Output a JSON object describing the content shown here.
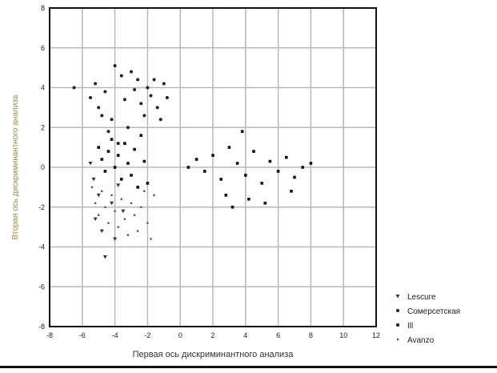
{
  "chart_data": {
    "type": "scatter",
    "title": "",
    "xlabel": "Первая ось дискриминантного анализа",
    "ylabel": "Вторая ось дискриминантного анализа",
    "xlim": [
      -8,
      12
    ],
    "ylim": [
      -8,
      8
    ],
    "x_ticks": [
      -8,
      -6,
      -4,
      -2,
      0,
      2,
      4,
      6,
      8,
      10,
      12
    ],
    "y_ticks": [
      -8,
      -6,
      -4,
      -2,
      0,
      2,
      4,
      6,
      8
    ],
    "grid": true,
    "legend_position": "bottom-right, outside plot",
    "series": [
      {
        "name": "Lescure",
        "marker": "v",
        "color": "#333333",
        "values": [
          [
            -5.5,
            0.2
          ],
          [
            -5.3,
            -0.6
          ],
          [
            -5.0,
            -1.4
          ],
          [
            -5.2,
            -2.6
          ],
          [
            -4.8,
            -3.2
          ],
          [
            -4.6,
            -4.5
          ],
          [
            -4.2,
            -1.8
          ],
          [
            -4.0,
            -3.6
          ],
          [
            -3.8,
            -0.9
          ],
          [
            -3.5,
            -2.2
          ]
        ]
      },
      {
        "name": "Сомерсетская",
        "marker": "o",
        "color": "#222222",
        "values": [
          [
            -6.5,
            4.0
          ],
          [
            -5.5,
            3.5
          ],
          [
            -5.2,
            4.2
          ],
          [
            -5.0,
            3.0
          ],
          [
            -4.8,
            2.6
          ],
          [
            -4.6,
            3.8
          ],
          [
            -4.4,
            1.8
          ],
          [
            -4.2,
            2.4
          ],
          [
            -4.0,
            5.1
          ],
          [
            -3.8,
            1.2
          ],
          [
            -3.6,
            4.6
          ],
          [
            -3.4,
            3.4
          ],
          [
            -3.2,
            2.0
          ],
          [
            -3.0,
            4.8
          ],
          [
            -2.8,
            3.9
          ],
          [
            -2.6,
            4.4
          ],
          [
            -2.4,
            3.2
          ],
          [
            -2.2,
            2.6
          ],
          [
            -2.0,
            4.0
          ],
          [
            -1.8,
            3.6
          ],
          [
            -1.6,
            4.4
          ],
          [
            -1.4,
            3.0
          ],
          [
            -1.2,
            2.4
          ],
          [
            -1.0,
            4.2
          ],
          [
            -0.8,
            3.5
          ]
        ]
      },
      {
        "name": "Ill",
        "marker": "s",
        "color": "#111111",
        "values": [
          [
            -5.0,
            1.0
          ],
          [
            -4.8,
            0.4
          ],
          [
            -4.6,
            -0.2
          ],
          [
            -4.4,
            0.8
          ],
          [
            -4.2,
            1.4
          ],
          [
            -4.0,
            0.0
          ],
          [
            -3.8,
            0.6
          ],
          [
            -3.6,
            -0.6
          ],
          [
            -3.4,
            1.2
          ],
          [
            -3.2,
            0.2
          ],
          [
            -3.0,
            -0.4
          ],
          [
            -2.8,
            0.9
          ],
          [
            -2.6,
            -1.0
          ],
          [
            -2.4,
            1.6
          ],
          [
            -2.2,
            0.3
          ],
          [
            -2.0,
            -0.8
          ],
          [
            0.5,
            0.0
          ],
          [
            1.0,
            0.4
          ],
          [
            1.5,
            -0.2
          ],
          [
            2.0,
            0.6
          ],
          [
            2.5,
            -0.6
          ],
          [
            3.0,
            1.0
          ],
          [
            3.5,
            0.2
          ],
          [
            4.0,
            -0.4
          ],
          [
            4.5,
            0.8
          ],
          [
            5.0,
            -0.8
          ],
          [
            5.5,
            0.3
          ],
          [
            6.0,
            -0.2
          ],
          [
            6.5,
            0.5
          ],
          [
            7.0,
            -0.5
          ],
          [
            7.5,
            0.0
          ],
          [
            8.0,
            0.2
          ],
          [
            3.8,
            1.8
          ],
          [
            4.2,
            -1.6
          ],
          [
            5.2,
            -1.8
          ],
          [
            2.8,
            -1.4
          ],
          [
            3.2,
            -2.0
          ],
          [
            6.8,
            -1.2
          ]
        ]
      },
      {
        "name": "Avanzo",
        "marker": ".",
        "color": "#555555",
        "values": [
          [
            -5.4,
            -1.0
          ],
          [
            -5.2,
            -1.8
          ],
          [
            -5.0,
            -2.4
          ],
          [
            -4.8,
            -1.2
          ],
          [
            -4.6,
            -2.0
          ],
          [
            -4.4,
            -2.8
          ],
          [
            -4.2,
            -1.4
          ],
          [
            -4.0,
            -2.2
          ],
          [
            -3.8,
            -3.0
          ],
          [
            -3.6,
            -1.6
          ],
          [
            -3.4,
            -2.6
          ],
          [
            -3.2,
            -3.4
          ],
          [
            -3.0,
            -1.8
          ],
          [
            -2.8,
            -2.4
          ],
          [
            -2.6,
            -3.2
          ],
          [
            -2.4,
            -2.0
          ],
          [
            -2.2,
            -1.2
          ],
          [
            -2.0,
            -2.8
          ],
          [
            -1.8,
            -3.6
          ],
          [
            -1.6,
            -1.4
          ]
        ]
      }
    ]
  }
}
